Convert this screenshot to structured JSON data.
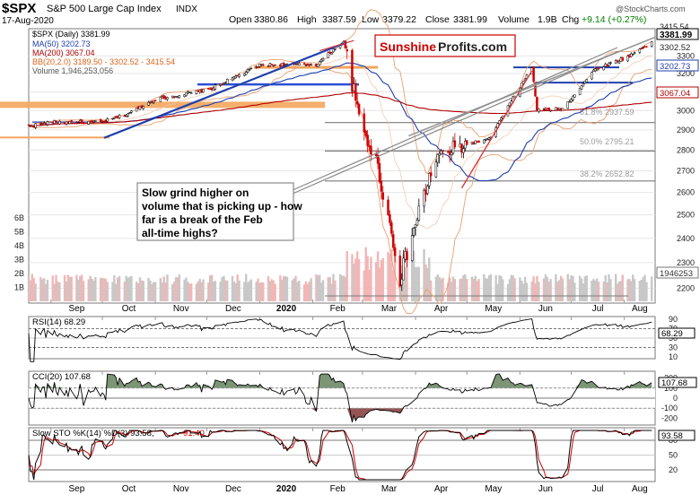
{
  "header": {
    "symbol": "$SPX",
    "name": "S&P 500 Large Cap Index",
    "exchange": "INDX",
    "date": "17-Aug-2020",
    "open_label": "Open",
    "open": "3380.86",
    "high_label": "High",
    "high": "3387.59",
    "low_label": "Low",
    "low": "3379.22",
    "close_label": "Close",
    "close": "3381.99",
    "volume_label": "Volume",
    "volume": "1.9B",
    "chg_label": "Chg",
    "chg": "+9.14 (+0.27%)",
    "up_color": "#008000"
  },
  "watermark": "@StockCharts.com",
  "logo": {
    "word1": "Sunshine",
    "word2": "Profits.com",
    "color": "#cc0000"
  },
  "legend": [
    {
      "label": "$SPX (Daily) 3381.99",
      "color": "#000000"
    },
    {
      "label": "MA(50) 3202.73",
      "color": "#1f3fae"
    },
    {
      "label": "MA(200) 3067.04",
      "color": "#b00000"
    },
    {
      "label": "BB(20,2.0) 3189.50 - 3302.52 - 3415.54",
      "color": "#d9641c"
    },
    {
      "label": "Volume 1,946,253,056",
      "color": "#555555"
    }
  ],
  "annotation": "Slow grind higher on volume that is picking up - how far is a break of the Feb all-time highs?",
  "fib_labels": [
    "61.8% 2937.59",
    "50.0% 2795.21",
    "38.2% 2652.82"
  ],
  "right_badges": [
    {
      "text": "3415.54",
      "kind": "plain"
    },
    {
      "text": "3381.99",
      "kind": "box"
    },
    {
      "text": "3302.52",
      "kind": "plain"
    },
    {
      "text": "3202.73",
      "kind": "box"
    },
    {
      "text": "3067.04",
      "kind": "box"
    }
  ],
  "volume_badge": "1946253",
  "indicators": {
    "rsi": {
      "label": "RSI(14) 68.29",
      "value": "68.29",
      "ticks": [
        "90",
        "70",
        "50",
        "30",
        "10"
      ]
    },
    "cci": {
      "label": "CCI(20) 107.68",
      "value": "107.68",
      "ticks": [
        "200",
        "100",
        "0",
        "-100",
        "-200"
      ]
    },
    "sto": {
      "label": "Slow STO %K(14) %D(3) 93.58, 91.40",
      "label_main": "Slow STO %K(14) %D(3) 93.58,",
      "label_d": "91.40",
      "value": "93.58",
      "ticks": [
        "80",
        "50",
        "20"
      ]
    }
  },
  "chart_data": {
    "type": "candlestick",
    "title": "$SPX S&P 500 Large Cap Index INDX",
    "ylim": [
      2150,
      3450
    ],
    "y_ticks": [
      2200,
      2300,
      2400,
      2500,
      2600,
      2700,
      2800,
      2900,
      3000,
      3100,
      3200,
      3300
    ],
    "volume_ticks": [
      "6B",
      "5B",
      "4B",
      "3B",
      "2B",
      "1B"
    ],
    "x_months": [
      "Sep",
      "Oct",
      "Nov",
      "Dec",
      "2020",
      "Feb",
      "Mar",
      "Apr",
      "May",
      "Jun",
      "Jul",
      "Aug"
    ],
    "close_approx": {
      "dates": [
        "2019-08-19",
        "2019-09-03",
        "2019-10-01",
        "2019-10-15",
        "2019-11-01",
        "2019-12-02",
        "2020-01-02",
        "2020-02-03",
        "2020-02-19",
        "2020-02-28",
        "2020-03-09",
        "2020-03-23",
        "2020-04-13",
        "2020-05-01",
        "2020-05-14",
        "2020-06-08",
        "2020-06-11",
        "2020-06-26",
        "2020-07-15",
        "2020-08-03",
        "2020-08-17"
      ],
      "values": [
        2920,
        2940,
        2940,
        2980,
        3060,
        3110,
        3250,
        3250,
        3386,
        2954,
        2746,
        2237,
        2762,
        2830,
        2852,
        3232,
        3002,
        3009,
        3226,
        3294,
        3381.99
      ]
    },
    "moving_averages": {
      "ma50": 3202.73,
      "ma200": 3067.04
    },
    "bollinger": {
      "lower": 3189.5,
      "middle": 3302.52,
      "upper": 3415.54
    },
    "fibonacci": [
      {
        "level": "61.8%",
        "value": 2937.59
      },
      {
        "level": "50.0%",
        "value": 2795.21
      },
      {
        "level": "38.2%",
        "value": 2652.82
      }
    ],
    "support_resistance": [
      3386,
      3230,
      3140,
      3030
    ],
    "volume_last": 1946253056
  }
}
